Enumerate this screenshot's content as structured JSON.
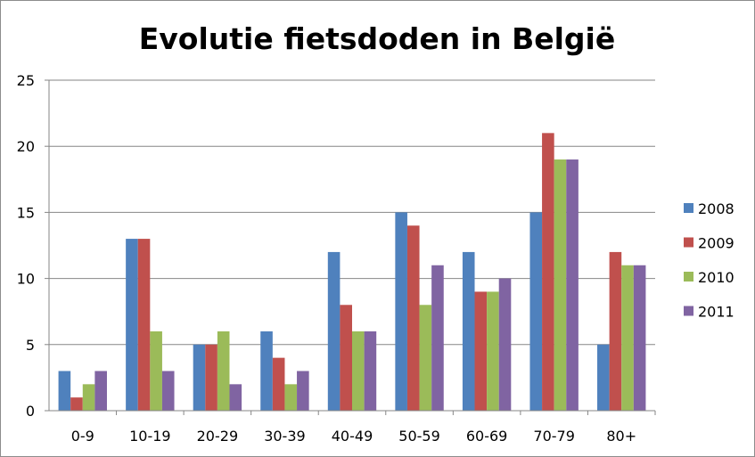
{
  "chart_data": {
    "type": "bar",
    "title": "Evolutie fietsdoden in België",
    "xlabel": "",
    "ylabel": "",
    "categories": [
      "0-9",
      "10-19",
      "20-29",
      "30-39",
      "40-49",
      "50-59",
      "60-69",
      "70-79",
      "80+"
    ],
    "ylim": [
      0,
      25
    ],
    "yticks": [
      0,
      5,
      10,
      15,
      20,
      25
    ],
    "grid": true,
    "legend": "right",
    "series": [
      {
        "name": "2008",
        "color": "#4F81BD",
        "values": [
          3,
          13,
          5,
          6,
          12,
          15,
          12,
          15,
          5
        ]
      },
      {
        "name": "2009",
        "color": "#C0504D",
        "values": [
          1,
          13,
          5,
          4,
          8,
          14,
          9,
          21,
          12
        ]
      },
      {
        "name": "2010",
        "color": "#9BBB59",
        "values": [
          2,
          6,
          6,
          2,
          6,
          8,
          9,
          19,
          11
        ]
      },
      {
        "name": "2011",
        "color": "#8064A2",
        "values": [
          3,
          3,
          2,
          3,
          6,
          11,
          10,
          19,
          11
        ]
      }
    ]
  }
}
